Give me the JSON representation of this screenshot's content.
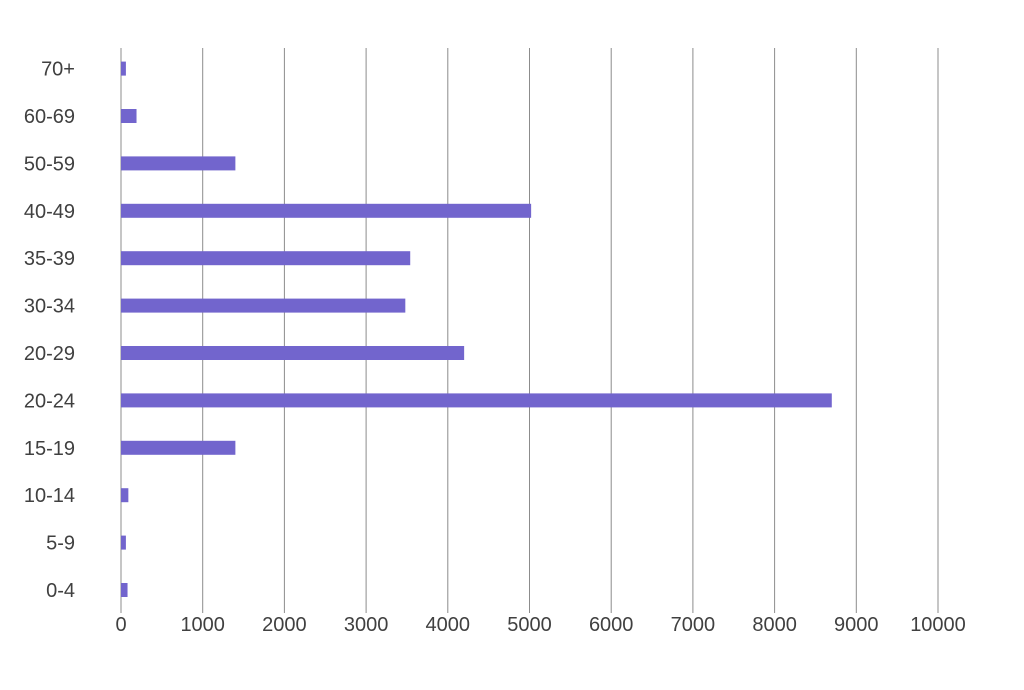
{
  "chart_data": {
    "type": "bar",
    "orientation": "horizontal",
    "categories": [
      "0-4",
      "5-9",
      "10-14",
      "15-19",
      "20-24",
      "20-29",
      "30-34",
      "35-39",
      "40-49",
      "50-59",
      "60-69",
      "70+"
    ],
    "values": [
      80,
      60,
      90,
      1400,
      8700,
      4200,
      3480,
      3540,
      5020,
      1400,
      190,
      60
    ],
    "xlim": [
      0,
      10000
    ],
    "xticks": [
      0,
      1000,
      2000,
      3000,
      4000,
      5000,
      6000,
      7000,
      8000,
      9000,
      10000
    ],
    "title": "",
    "xlabel": "",
    "ylabel": "",
    "grid": "vertical",
    "legend": "none",
    "bar_color": "#7265cd"
  }
}
